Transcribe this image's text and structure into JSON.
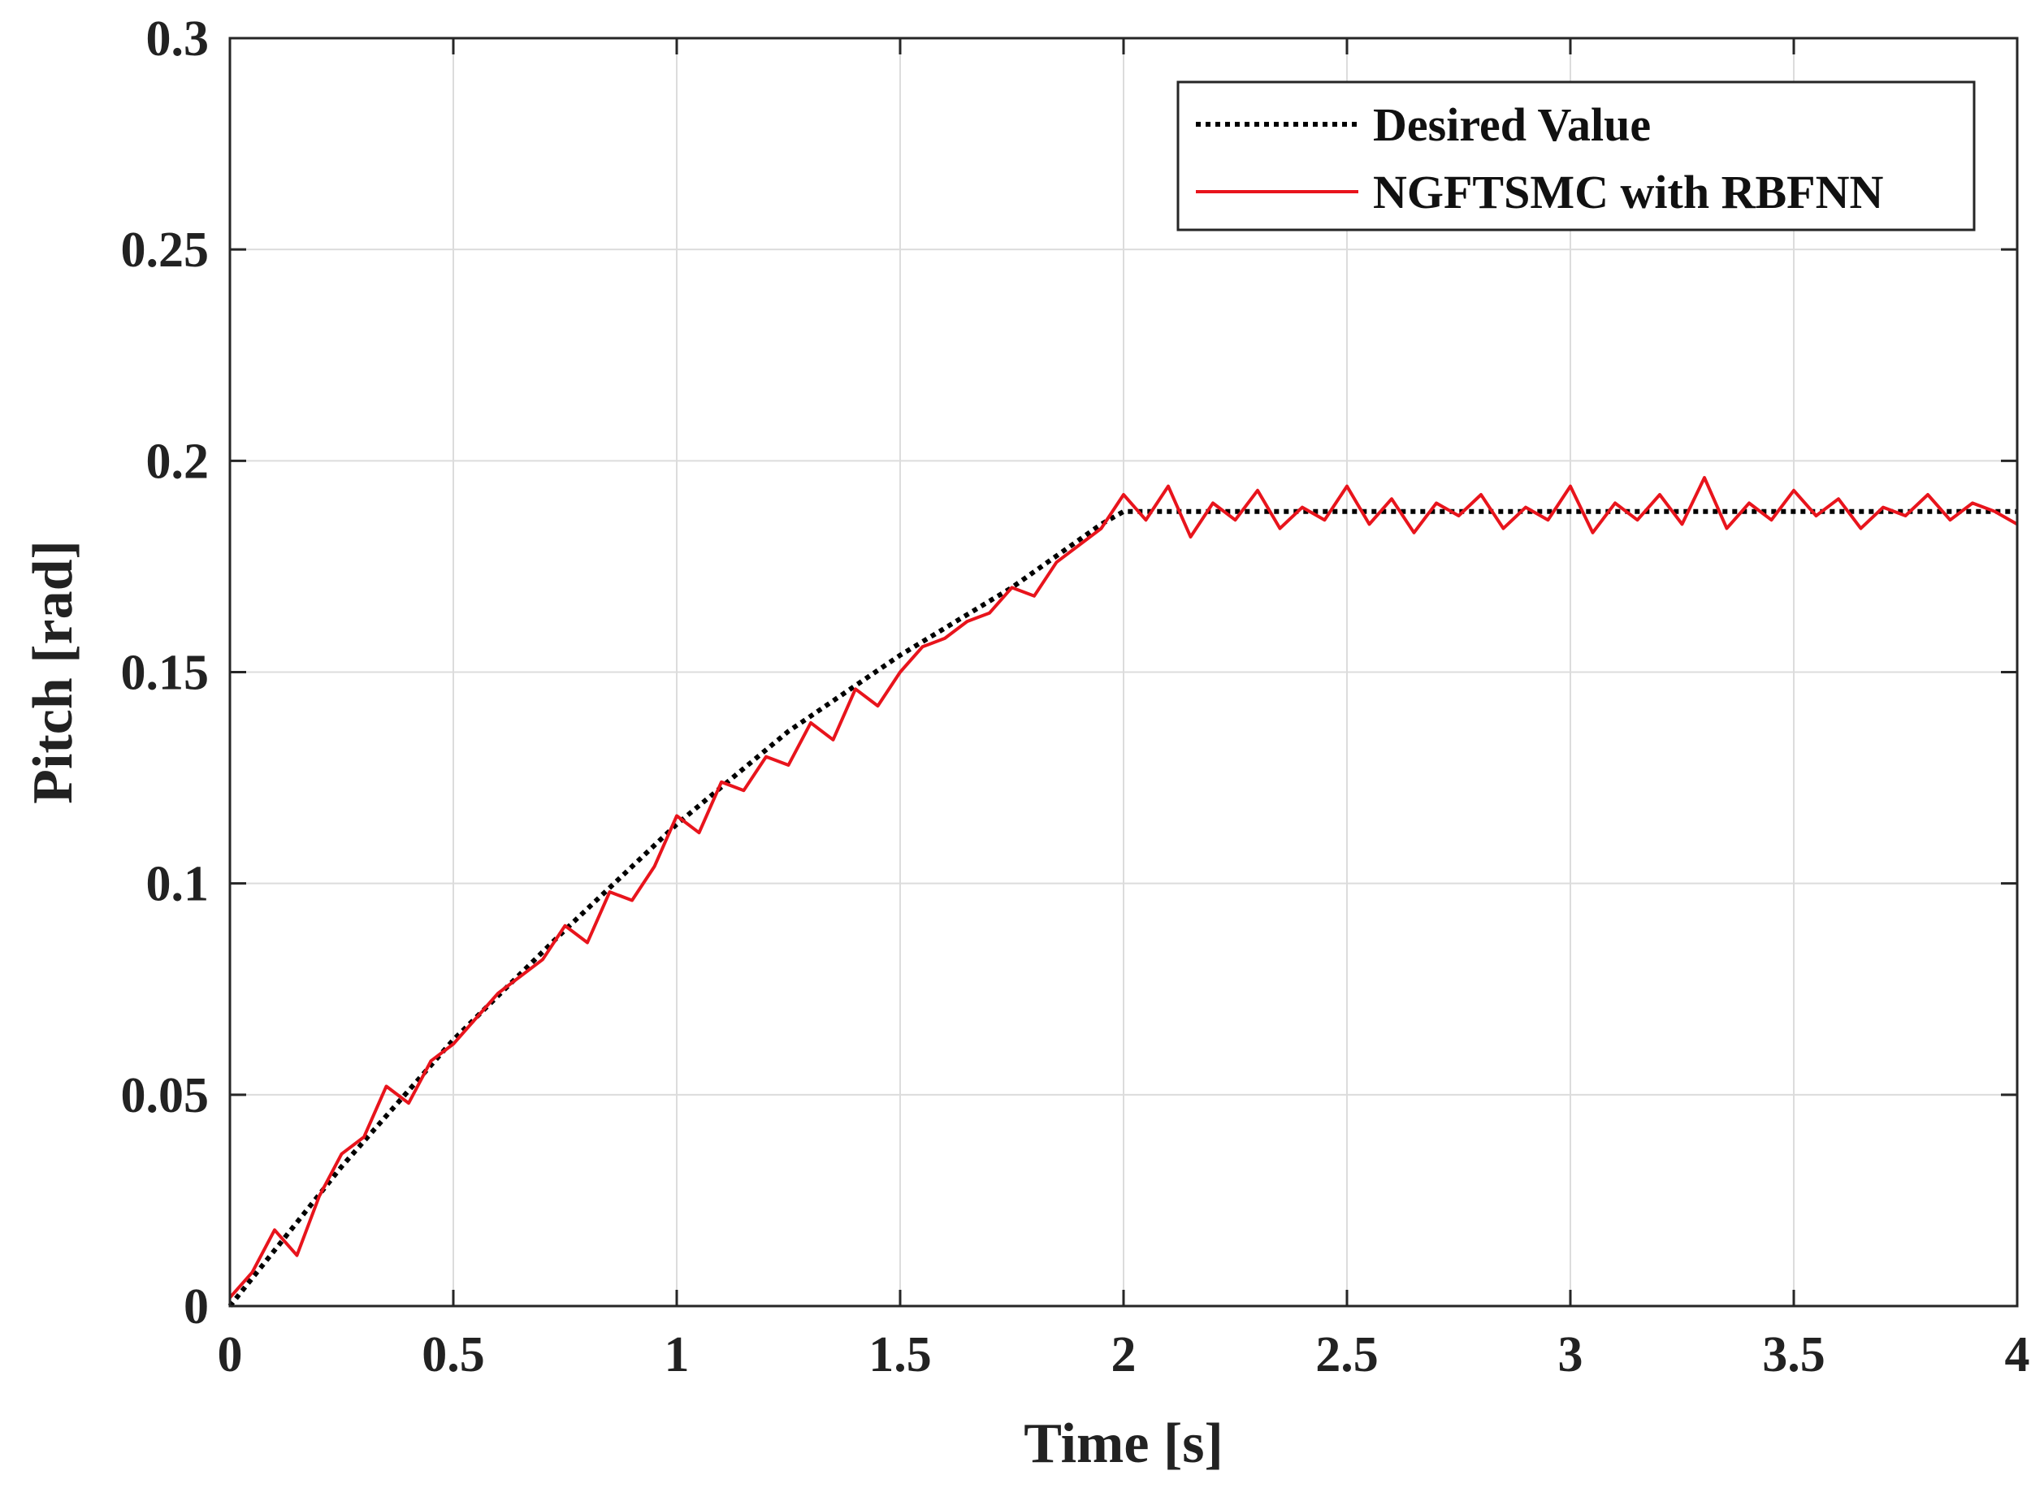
{
  "chart_data": {
    "type": "line",
    "xlabel": "Time [s]",
    "ylabel": "Pitch [rad]",
    "xlim": [
      0,
      4
    ],
    "ylim": [
      0,
      0.3
    ],
    "xticks": [
      0,
      0.5,
      1,
      1.5,
      2,
      2.5,
      3,
      3.5,
      4
    ],
    "xtick_labels": [
      "0",
      "0.5",
      "1",
      "1.5",
      "2",
      "2.5",
      "3",
      "3.5",
      "4"
    ],
    "yticks": [
      0,
      0.05,
      0.1,
      0.15,
      0.2,
      0.25,
      0.3
    ],
    "ytick_labels": [
      "0",
      "0.05",
      "0.1",
      "0.15",
      "0.2",
      "0.25",
      "0.3"
    ],
    "grid": true,
    "legend_position": "top-right",
    "series": [
      {
        "name": "Desired Value",
        "color": "#000000",
        "style": "dotted",
        "x": [
          0,
          0.25,
          0.5,
          0.75,
          1.0,
          1.25,
          1.5,
          1.75,
          1.95,
          2.0,
          2.5,
          3.0,
          3.5,
          4.0
        ],
        "y": [
          0,
          0.033,
          0.063,
          0.089,
          0.114,
          0.136,
          0.154,
          0.17,
          0.185,
          0.188,
          0.188,
          0.188,
          0.188,
          0.188
        ]
      },
      {
        "name": "NGFTSMC with RBFNN",
        "color": "#e8141c",
        "style": "solid",
        "x": [
          0,
          0.05,
          0.1,
          0.15,
          0.2,
          0.25,
          0.3,
          0.35,
          0.4,
          0.45,
          0.5,
          0.55,
          0.6,
          0.65,
          0.7,
          0.75,
          0.8,
          0.85,
          0.9,
          0.95,
          1.0,
          1.05,
          1.1,
          1.15,
          1.2,
          1.25,
          1.3,
          1.35,
          1.4,
          1.45,
          1.5,
          1.55,
          1.6,
          1.65,
          1.7,
          1.75,
          1.8,
          1.85,
          1.9,
          1.95,
          2.0,
          2.05,
          2.1,
          2.15,
          2.2,
          2.25,
          2.3,
          2.35,
          2.4,
          2.45,
          2.5,
          2.55,
          2.6,
          2.65,
          2.7,
          2.75,
          2.8,
          2.85,
          2.9,
          2.95,
          3.0,
          3.05,
          3.1,
          3.15,
          3.2,
          3.25,
          3.3,
          3.35,
          3.4,
          3.45,
          3.5,
          3.55,
          3.6,
          3.65,
          3.7,
          3.75,
          3.8,
          3.85,
          3.9,
          3.95,
          4.0
        ],
        "y": [
          0.002,
          0.008,
          0.018,
          0.012,
          0.026,
          0.036,
          0.04,
          0.052,
          0.048,
          0.058,
          0.062,
          0.068,
          0.074,
          0.078,
          0.082,
          0.09,
          0.086,
          0.098,
          0.096,
          0.104,
          0.116,
          0.112,
          0.124,
          0.122,
          0.13,
          0.128,
          0.138,
          0.134,
          0.146,
          0.142,
          0.15,
          0.156,
          0.158,
          0.162,
          0.164,
          0.17,
          0.168,
          0.176,
          0.18,
          0.184,
          0.192,
          0.186,
          0.194,
          0.182,
          0.19,
          0.186,
          0.193,
          0.184,
          0.189,
          0.186,
          0.194,
          0.185,
          0.191,
          0.183,
          0.19,
          0.187,
          0.192,
          0.184,
          0.189,
          0.186,
          0.194,
          0.183,
          0.19,
          0.186,
          0.192,
          0.185,
          0.196,
          0.184,
          0.19,
          0.186,
          0.193,
          0.187,
          0.191,
          0.184,
          0.189,
          0.187,
          0.192,
          0.186,
          0.19,
          0.188,
          0.185
        ]
      }
    ]
  }
}
